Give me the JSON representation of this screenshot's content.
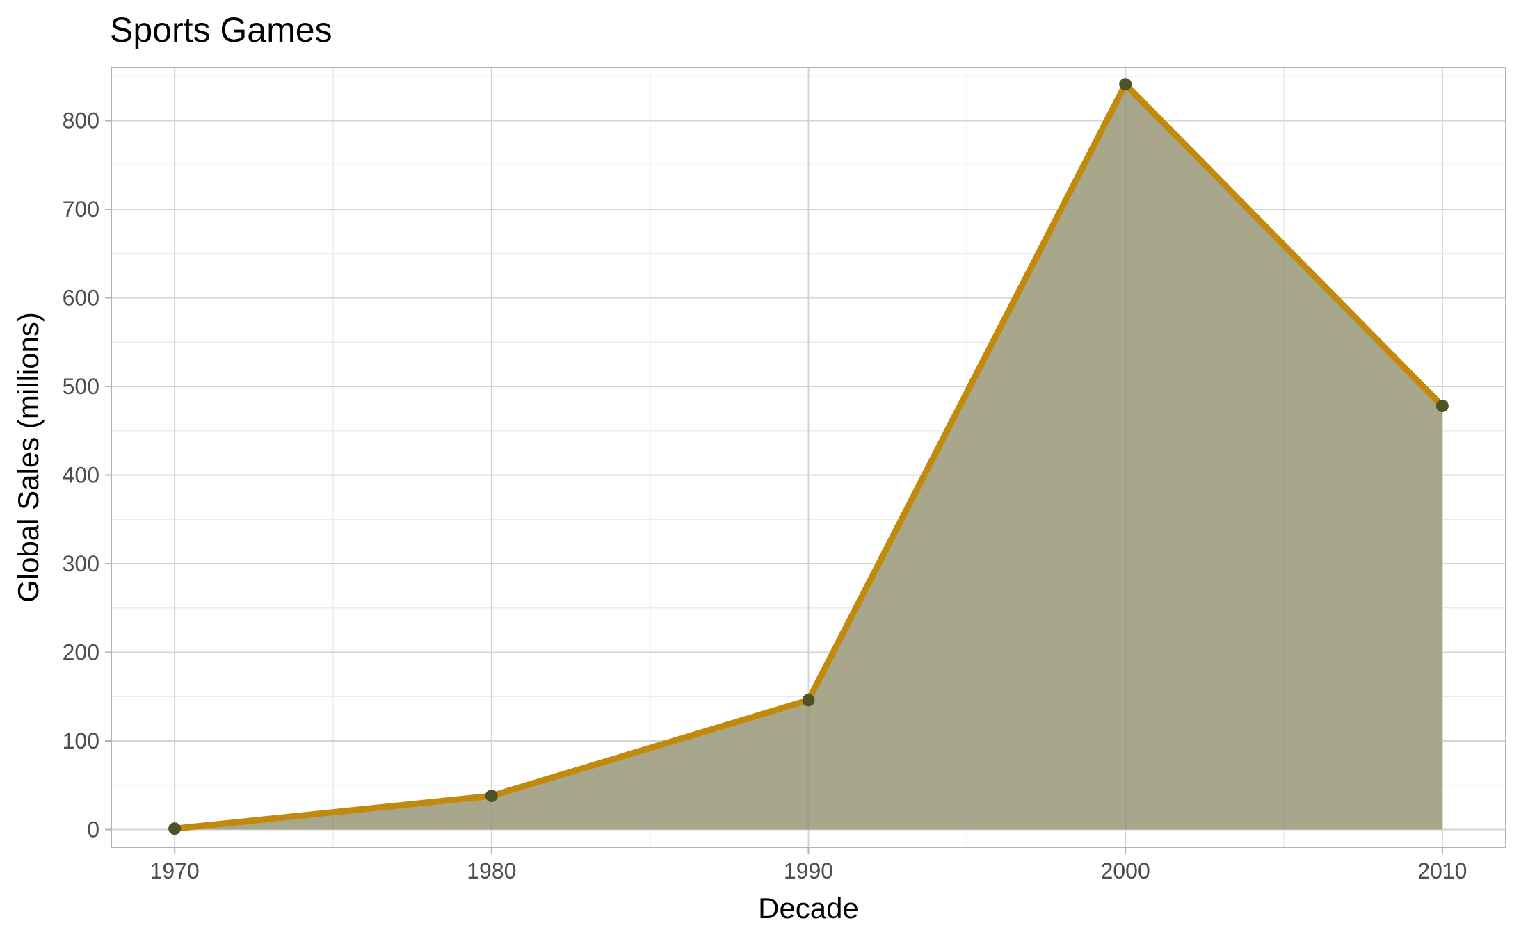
{
  "chart_data": {
    "type": "area",
    "title": "Sports Games",
    "xlabel": "Decade",
    "ylabel": "Global Sales (millions)",
    "x": [
      1970,
      1980,
      1990,
      2000,
      2010
    ],
    "series": [
      {
        "values": [
          1,
          38,
          146,
          841,
          478
        ]
      }
    ],
    "xticks": [
      "1970",
      "1980",
      "1990",
      "2000",
      "2010"
    ],
    "yticks": [
      "0",
      "100",
      "200",
      "300",
      "400",
      "500",
      "600",
      "700",
      "800"
    ],
    "xlim": [
      1968,
      2012
    ],
    "ylim": [
      -20,
      860
    ],
    "grid": true,
    "legend": "none",
    "colors": {
      "line": "#C18A0C",
      "fill": "#A8A78C",
      "points": "#4F5226",
      "panel_border": "#B3B3B3",
      "grid_major": "#D4D4D4",
      "grid_minor": "#EBEBEB"
    }
  }
}
